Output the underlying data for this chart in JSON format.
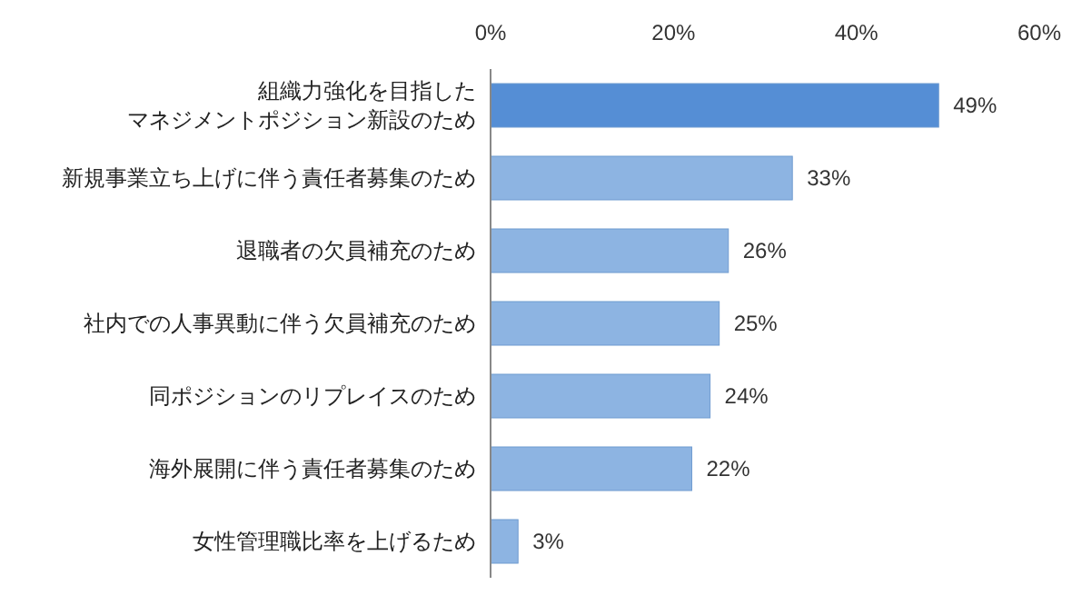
{
  "chart_data": {
    "type": "bar",
    "orientation": "horizontal",
    "categories": [
      "組織力強化を目指したマネジメントポジション新設のため",
      "新規事業立ち上げに伴う責任者募集のため",
      "退職者の欠員補充のため",
      "社内での人事異動に伴う欠員補充のため",
      "同ポジションのリプレイスのため",
      "海外展開に伴う責任者募集のため",
      "女性管理職比率を上げるため"
    ],
    "values": [
      49,
      33,
      26,
      25,
      24,
      22,
      3
    ],
    "colors": [
      "#558ed5",
      "#8db4e2",
      "#8db4e2",
      "#8db4e2",
      "#8db4e2",
      "#8db4e2",
      "#8db4e2"
    ],
    "value_labels": [
      "49%",
      "33%",
      "26%",
      "25%",
      "24%",
      "22%",
      "3%"
    ],
    "xlim": [
      0,
      60
    ],
    "xticks": [
      {
        "value": 0,
        "label": "0%"
      },
      {
        "value": 20,
        "label": "20%"
      },
      {
        "value": 40,
        "label": "40%"
      },
      {
        "value": 60,
        "label": "60%"
      }
    ],
    "grid": false
  }
}
